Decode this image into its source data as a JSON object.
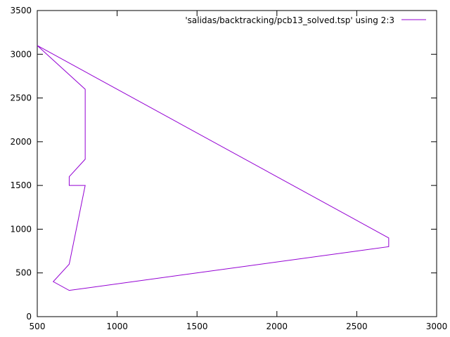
{
  "chart_data": {
    "type": "line",
    "title": "",
    "xlabel": "",
    "ylabel": "",
    "xlim": [
      500,
      3000
    ],
    "ylim": [
      0,
      3500
    ],
    "x_ticks": [
      500,
      1000,
      1500,
      2000,
      2500,
      3000
    ],
    "y_ticks": [
      0,
      500,
      1000,
      1500,
      2000,
      2500,
      3000,
      3500
    ],
    "x_tick_labels": [
      "500",
      "1000",
      "1500",
      "2000",
      "2500",
      "3000"
    ],
    "y_tick_labels": [
      "0",
      "500",
      "1000",
      "1500",
      "2000",
      "2500",
      "3000",
      "3500"
    ],
    "grid": false,
    "legend_position": "top-right",
    "series": [
      {
        "name": "'salidas/backtracking/pcb13_solved.tsp' using 2:3",
        "color": "#9400d3",
        "x": [
          500,
          800,
          800,
          700,
          700,
          800,
          700,
          600,
          700,
          2700,
          2700,
          500
        ],
        "y": [
          3100,
          2600,
          1800,
          1600,
          1500,
          1500,
          600,
          400,
          300,
          800,
          900,
          3100
        ]
      }
    ]
  }
}
